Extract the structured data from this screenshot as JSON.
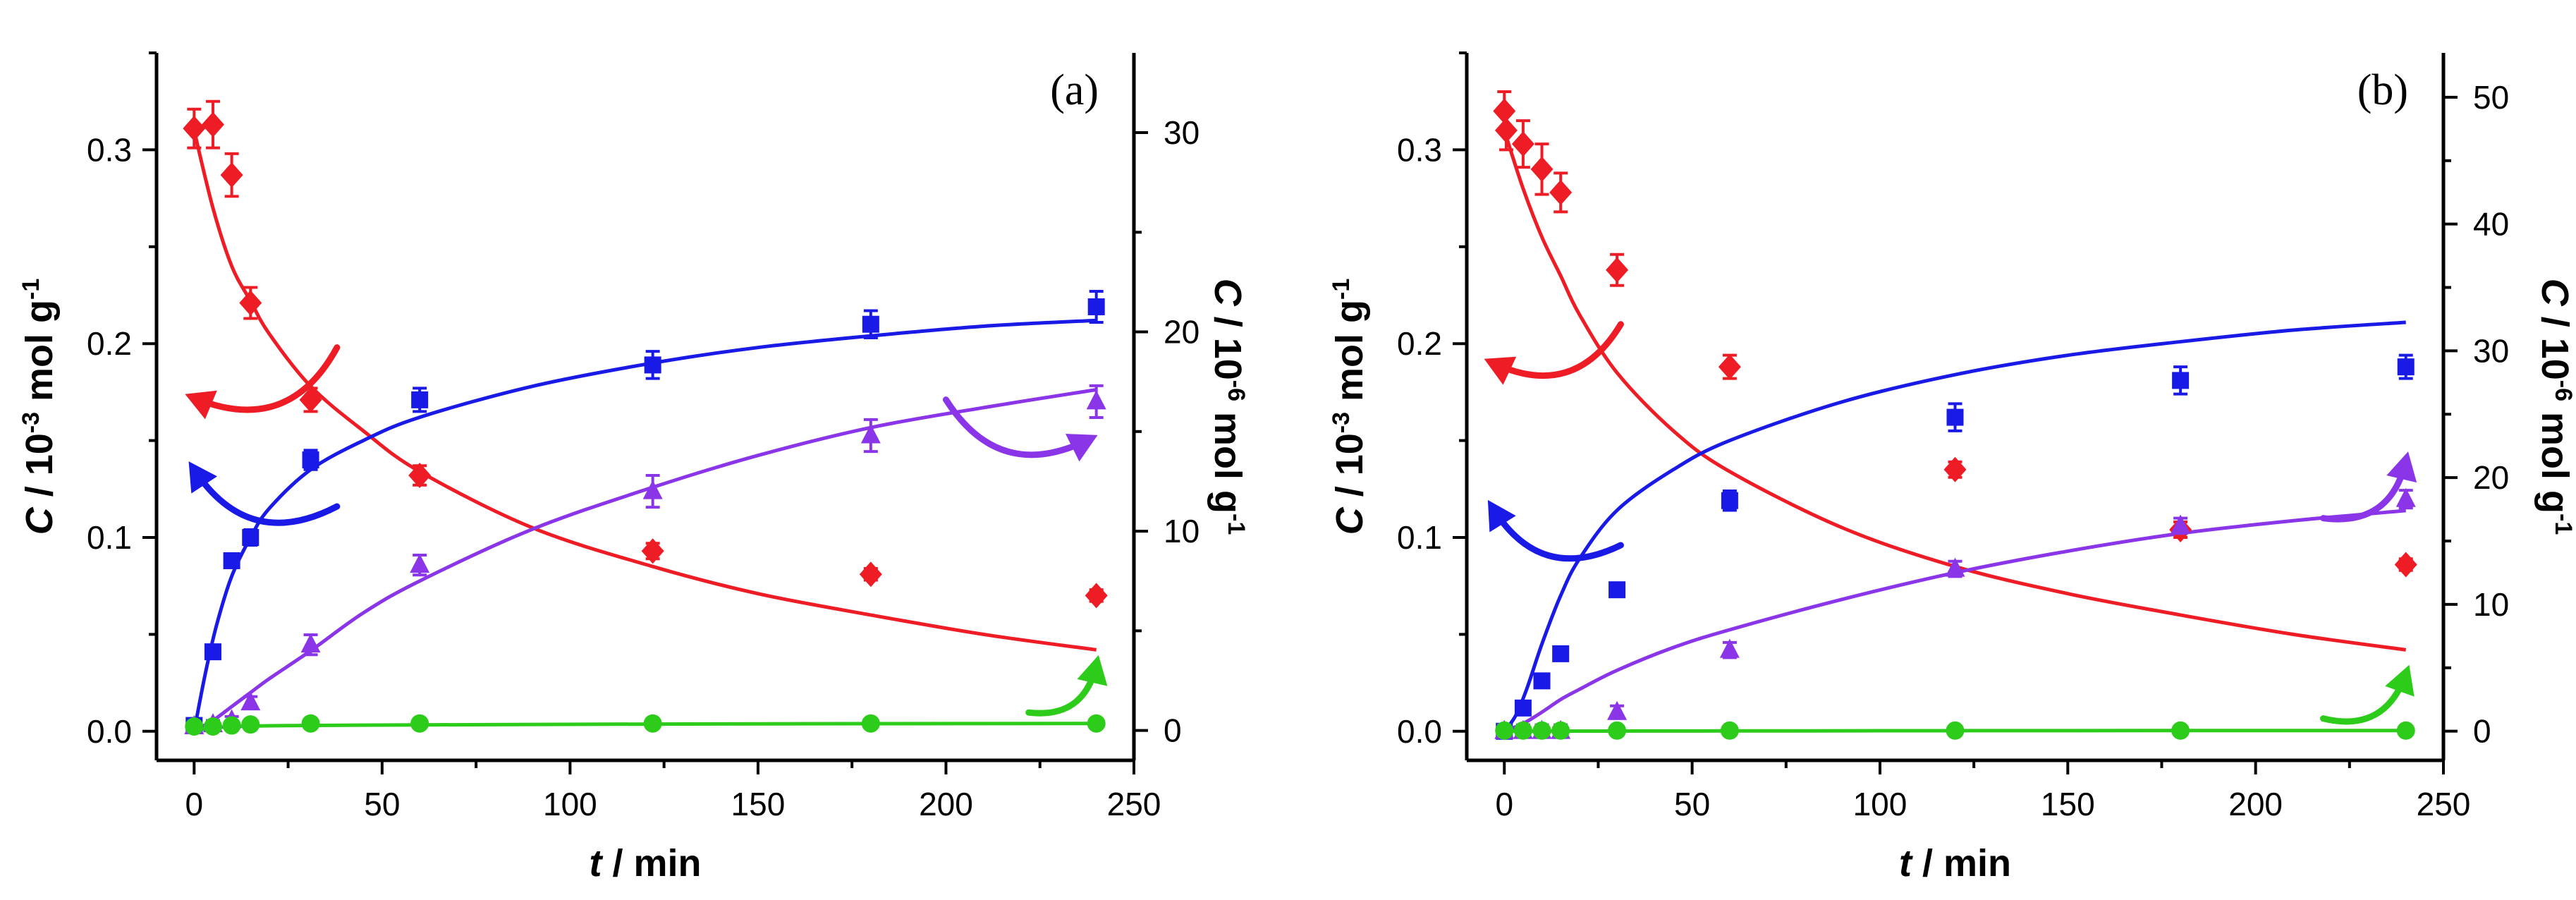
{
  "chart_data": [
    {
      "type": "scatter",
      "panel_label": "(a)",
      "xlabel": {
        "italic": "t",
        "rest": " / min"
      },
      "ylabel_left": {
        "italic": "C",
        "rest": " / 10",
        "sup": "-3",
        "unit": " mol g",
        "sup2": "-1"
      },
      "ylabel_right": {
        "italic": "C",
        "rest": " / 10",
        "sup": "-6",
        "unit": " mol g",
        "sup2": "-1"
      },
      "xlim": [
        -10,
        250
      ],
      "ylim_left": [
        -0.015,
        0.35
      ],
      "ylim_right": [
        -1.5,
        34
      ],
      "x_ticks": [
        0,
        50,
        100,
        150,
        200,
        250
      ],
      "x_tick_labels": [
        "0",
        "50",
        "100",
        "150",
        "200",
        "250"
      ],
      "left_ticks": [
        0.0,
        0.1,
        0.2,
        0.3
      ],
      "left_tick_labels": [
        "0.0",
        "0.1",
        "0.2",
        "0.3"
      ],
      "right_ticks": [
        0,
        10,
        20,
        30
      ],
      "right_tick_labels": [
        "0",
        "10",
        "20",
        "30"
      ],
      "series": [
        {
          "name": "red",
          "color": "#ee1c25",
          "marker": "diamond",
          "axis": "left",
          "x": [
            0,
            5,
            10,
            15,
            31,
            60,
            122,
            180,
            240
          ],
          "y": [
            0.311,
            0.313,
            0.287,
            0.221,
            0.171,
            0.132,
            0.093,
            0.081,
            0.07
          ],
          "err": [
            0.01,
            0.012,
            0.011,
            0.008,
            0.006,
            0.005,
            0.004,
            0.003,
            0.003
          ]
        },
        {
          "name": "blue",
          "color": "#1a1ae6",
          "marker": "square",
          "axis": "left",
          "x": [
            0,
            5,
            10,
            15,
            31,
            60,
            122,
            180,
            240
          ],
          "y": [
            0.003,
            0.041,
            0.088,
            0.1,
            0.14,
            0.171,
            0.189,
            0.21,
            0.219
          ],
          "err": [
            0.002,
            0.003,
            0.003,
            0.004,
            0.005,
            0.006,
            0.007,
            0.007,
            0.008
          ]
        },
        {
          "name": "purple",
          "color": "#8b35e8",
          "marker": "triangle",
          "axis": "right",
          "x": [
            0,
            5,
            10,
            15,
            31,
            60,
            122,
            180,
            240
          ],
          "y": [
            0.2,
            0.3,
            0.5,
            1.4,
            4.3,
            8.3,
            12.0,
            14.8,
            16.5
          ],
          "err": [
            0.2,
            0.2,
            0.2,
            0.3,
            0.5,
            0.5,
            0.8,
            0.8,
            0.8
          ]
        },
        {
          "name": "green",
          "color": "#2ecc1a",
          "marker": "circle",
          "axis": "right",
          "x": [
            0,
            5,
            10,
            15,
            31,
            60,
            122,
            180,
            240
          ],
          "y": [
            0.2,
            0.2,
            0.25,
            0.3,
            0.35,
            0.35,
            0.35,
            0.35,
            0.35
          ],
          "err": [
            0,
            0,
            0,
            0,
            0,
            0,
            0,
            0,
            0
          ]
        }
      ],
      "fits": [
        {
          "name": "red-fit",
          "color": "#ee1c25",
          "axis": "left",
          "x": [
            0,
            5,
            10,
            15,
            20,
            31,
            45,
            60,
            90,
            122,
            150,
            180,
            210,
            240
          ],
          "y": [
            0.31,
            0.27,
            0.24,
            0.222,
            0.205,
            0.178,
            0.155,
            0.134,
            0.105,
            0.085,
            0.071,
            0.06,
            0.05,
            0.042
          ]
        },
        {
          "name": "blue-fit",
          "color": "#1a1ae6",
          "axis": "left",
          "x": [
            0,
            3,
            6,
            10,
            15,
            20,
            31,
            45,
            60,
            90,
            122,
            150,
            180,
            210,
            240
          ],
          "y": [
            0.0,
            0.03,
            0.055,
            0.08,
            0.1,
            0.115,
            0.135,
            0.15,
            0.162,
            0.178,
            0.19,
            0.198,
            0.204,
            0.209,
            0.212
          ]
        },
        {
          "name": "purple-fit",
          "color": "#8b35e8",
          "axis": "right",
          "x": [
            0,
            5,
            10,
            15,
            20,
            31,
            45,
            60,
            90,
            122,
            150,
            180,
            210,
            240
          ],
          "y": [
            0.0,
            0.5,
            1.2,
            1.9,
            2.6,
            4.0,
            5.9,
            7.5,
            10.1,
            12.2,
            13.8,
            15.2,
            16.2,
            17.1
          ]
        },
        {
          "name": "green-fit",
          "color": "#2ecc1a",
          "axis": "right",
          "x": [
            0,
            10,
            31,
            60,
            122,
            180,
            240
          ],
          "y": [
            0.0,
            0.2,
            0.25,
            0.28,
            0.32,
            0.34,
            0.35
          ]
        }
      ],
      "arrows": [
        {
          "color": "#ee1c25",
          "axis": "left",
          "from": [
            38,
            0.198
          ],
          "to": [
            0,
            0.172
          ]
        },
        {
          "color": "#1a1ae6",
          "axis": "left",
          "from": [
            38,
            0.116
          ],
          "to": [
            0,
            0.135
          ]
        },
        {
          "color": "#8b35e8",
          "axis": "right",
          "from": [
            200,
            16.6
          ],
          "to": [
            238,
            14.6
          ]
        },
        {
          "color": "#2ecc1a",
          "axis": "right",
          "from": [
            222,
            0.9
          ],
          "to": [
            240,
            3.3
          ]
        }
      ]
    },
    {
      "type": "scatter",
      "panel_label": "(b)",
      "xlabel": {
        "italic": "t",
        "rest": " / min"
      },
      "ylabel_left": {
        "italic": "C",
        "rest": " / 10",
        "sup": "-3",
        "unit": " mol g",
        "sup2": "-1"
      },
      "ylabel_right": {
        "italic": "C",
        "rest": " / 10",
        "sup": "-6",
        "unit": " mol g",
        "sup2": "-1"
      },
      "xlim": [
        -10,
        250
      ],
      "ylim_left": [
        -0.015,
        0.35
      ],
      "ylim_right": [
        -2.3,
        53.5
      ],
      "x_ticks": [
        0,
        50,
        100,
        150,
        200,
        250
      ],
      "x_tick_labels": [
        "0",
        "50",
        "100",
        "150",
        "200",
        "250"
      ],
      "left_ticks": [
        0.0,
        0.1,
        0.2,
        0.3
      ],
      "left_tick_labels": [
        "0.0",
        "0.1",
        "0.2",
        "0.3"
      ],
      "right_ticks": [
        0,
        10,
        20,
        30,
        40,
        50
      ],
      "right_tick_labels": [
        "0",
        "10",
        "20",
        "30",
        "40",
        "50"
      ],
      "series": [
        {
          "name": "red",
          "color": "#ee1c25",
          "marker": "diamond",
          "axis": "left",
          "x": [
            0,
            0.5,
            5,
            10,
            15,
            30,
            60,
            120,
            180,
            240
          ],
          "y": [
            0.32,
            0.31,
            0.303,
            0.29,
            0.278,
            0.238,
            0.188,
            0.135,
            0.104,
            0.086
          ],
          "err": [
            0.01,
            0.01,
            0.012,
            0.013,
            0.01,
            0.008,
            0.006,
            0.004,
            0.004,
            0.003
          ]
        },
        {
          "name": "blue",
          "color": "#1a1ae6",
          "marker": "square",
          "axis": "left",
          "x": [
            0,
            5,
            10,
            15,
            30,
            60,
            120,
            180,
            240
          ],
          "y": [
            0.0,
            0.012,
            0.026,
            0.04,
            0.073,
            0.119,
            0.162,
            0.181,
            0.188
          ],
          "err": [
            0.002,
            0.002,
            0.002,
            0.003,
            0.003,
            0.005,
            0.007,
            0.007,
            0.006
          ]
        },
        {
          "name": "purple",
          "color": "#8b35e8",
          "marker": "triangle",
          "axis": "right",
          "x": [
            0,
            5,
            10,
            15,
            30,
            60,
            120,
            180,
            240
          ],
          "y": [
            0.0,
            0.0,
            0.0,
            0.0,
            1.5,
            6.4,
            12.8,
            16.2,
            18.3
          ],
          "err": [
            0.5,
            0.5,
            0.5,
            0.5,
            0.5,
            0.6,
            0.6,
            0.6,
            0.7
          ]
        },
        {
          "name": "green",
          "color": "#2ecc1a",
          "marker": "circle",
          "axis": "right",
          "x": [
            0,
            5,
            10,
            15,
            30,
            60,
            120,
            180,
            240
          ],
          "y": [
            0.05,
            0.05,
            0.05,
            0.05,
            0.05,
            0.05,
            0.05,
            0.05,
            0.05
          ],
          "err": [
            0,
            0,
            0,
            0,
            0,
            0,
            0,
            0,
            0
          ]
        }
      ],
      "fits": [
        {
          "name": "red-fit",
          "color": "#ee1c25",
          "axis": "left",
          "x": [
            0,
            5,
            10,
            15,
            20,
            30,
            45,
            60,
            90,
            120,
            150,
            180,
            210,
            240
          ],
          "y": [
            0.31,
            0.28,
            0.255,
            0.235,
            0.215,
            0.185,
            0.155,
            0.134,
            0.105,
            0.085,
            0.071,
            0.06,
            0.05,
            0.042
          ]
        },
        {
          "name": "blue-fit",
          "color": "#1a1ae6",
          "axis": "left",
          "x": [
            0,
            3,
            6,
            10,
            15,
            20,
            30,
            45,
            60,
            90,
            120,
            150,
            180,
            210,
            240
          ],
          "y": [
            0.0,
            0.008,
            0.022,
            0.045,
            0.07,
            0.089,
            0.114,
            0.135,
            0.15,
            0.17,
            0.184,
            0.194,
            0.201,
            0.207,
            0.211
          ]
        },
        {
          "name": "purple-fit",
          "color": "#8b35e8",
          "axis": "right",
          "x": [
            0,
            5,
            10,
            15,
            20,
            30,
            45,
            60,
            90,
            120,
            150,
            180,
            210,
            240
          ],
          "y": [
            0.0,
            0.6,
            1.5,
            2.5,
            3.3,
            4.8,
            6.6,
            8.0,
            10.4,
            12.5,
            14.2,
            15.6,
            16.6,
            17.4
          ]
        },
        {
          "name": "green-fit",
          "color": "#2ecc1a",
          "axis": "right",
          "x": [
            0,
            60,
            120,
            180,
            240
          ],
          "y": [
            0.0,
            0.02,
            0.04,
            0.05,
            0.05
          ]
        }
      ],
      "arrows": [
        {
          "color": "#ee1c25",
          "axis": "left",
          "from": [
            31,
            0.21
          ],
          "to": [
            -3,
            0.19
          ]
        },
        {
          "color": "#1a1ae6",
          "axis": "left",
          "from": [
            31,
            0.096
          ],
          "to": [
            -3,
            0.115
          ]
        },
        {
          "color": "#8b35e8",
          "axis": "right",
          "from": [
            218,
            16.8
          ],
          "to": [
            240,
            21.3
          ]
        },
        {
          "color": "#2ecc1a",
          "axis": "right",
          "from": [
            218,
            1.0
          ],
          "to": [
            240,
            4.5
          ]
        }
      ]
    }
  ]
}
